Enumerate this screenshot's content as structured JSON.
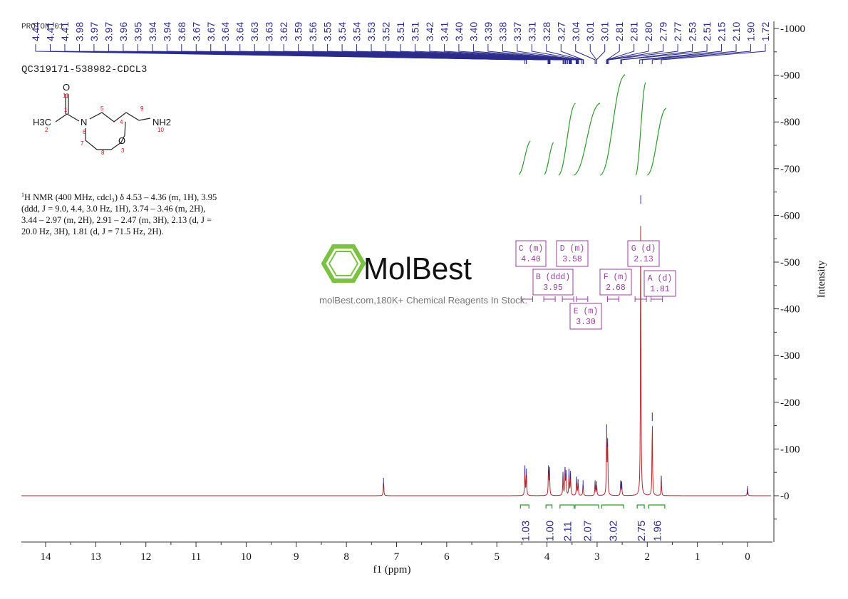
{
  "chart_data": {
    "type": "line",
    "title": "",
    "experiment_label": "PROTON_01",
    "sample_id": "QC319171-538982-CDCL3",
    "xlabel": "f1 (ppm)",
    "ylabel": "Intensity",
    "xlim": [
      14.5,
      -0.5
    ],
    "ylim": [
      -100,
      1000
    ],
    "x_ticks": [
      "14",
      "13",
      "12",
      "11",
      "10",
      "9",
      "8",
      "7",
      "6",
      "5",
      "4",
      "3",
      "2",
      "1",
      "0"
    ],
    "y_ticks": [
      "1000",
      "900",
      "800",
      "700",
      "600",
      "500",
      "400",
      "300",
      "200",
      "100",
      "0"
    ],
    "grid": false,
    "peak_labels": [
      "4.44",
      "4.41",
      "4.41",
      "3.98",
      "3.97",
      "3.97",
      "3.96",
      "3.95",
      "3.94",
      "3.94",
      "3.68",
      "3.67",
      "3.67",
      "3.64",
      "3.64",
      "3.63",
      "3.63",
      "3.62",
      "3.59",
      "3.56",
      "3.55",
      "3.54",
      "3.54",
      "3.53",
      "3.52",
      "3.51",
      "3.51",
      "3.42",
      "3.41",
      "3.40",
      "3.40",
      "3.39",
      "3.38",
      "3.37",
      "3.31",
      "3.28",
      "3.27",
      "3.04",
      "3.01",
      "3.01",
      "2.81",
      "2.81",
      "2.80",
      "2.79",
      "2.77",
      "2.53",
      "2.51",
      "2.15",
      "2.10",
      "1.90",
      "1.72"
    ],
    "spectrum_peaks": [
      {
        "ppm": 7.26,
        "height": 35
      },
      {
        "ppm": 4.44,
        "height": 62
      },
      {
        "ppm": 4.41,
        "height": 55
      },
      {
        "ppm": 3.97,
        "height": 62
      },
      {
        "ppm": 3.95,
        "height": 58
      },
      {
        "ppm": 3.68,
        "height": 48
      },
      {
        "ppm": 3.64,
        "height": 58
      },
      {
        "ppm": 3.62,
        "height": 52
      },
      {
        "ppm": 3.56,
        "height": 55
      },
      {
        "ppm": 3.53,
        "height": 50
      },
      {
        "ppm": 3.41,
        "height": 38
      },
      {
        "ppm": 3.38,
        "height": 32
      },
      {
        "ppm": 3.28,
        "height": 30
      },
      {
        "ppm": 3.04,
        "height": 30
      },
      {
        "ppm": 3.01,
        "height": 28
      },
      {
        "ppm": 2.81,
        "height": 150
      },
      {
        "ppm": 2.79,
        "height": 120
      },
      {
        "ppm": 2.53,
        "height": 30
      },
      {
        "ppm": 2.51,
        "height": 28
      },
      {
        "ppm": 2.13,
        "height": 640
      },
      {
        "ppm": 1.9,
        "height": 175
      },
      {
        "ppm": 1.72,
        "height": 40
      },
      {
        "ppm": 0.0,
        "height": 18
      }
    ],
    "multiplets": [
      {
        "id": "A",
        "mult": "(d)",
        "shift": "1.81"
      },
      {
        "id": "B",
        "mult": "(ddd)",
        "shift": "3.95"
      },
      {
        "id": "C",
        "mult": "(m)",
        "shift": "4.40"
      },
      {
        "id": "D",
        "mult": "(m)",
        "shift": "3.58"
      },
      {
        "id": "E",
        "mult": "(m)",
        "shift": "3.30"
      },
      {
        "id": "F",
        "mult": "(m)",
        "shift": "2.68"
      },
      {
        "id": "G",
        "mult": "(d)",
        "shift": "2.13"
      }
    ],
    "integrals": [
      {
        "label": "1.03",
        "from": 4.53,
        "to": 4.36
      },
      {
        "label": "1.00",
        "from": 4.02,
        "to": 3.9
      },
      {
        "label": "2.11",
        "from": 3.74,
        "to": 3.46
      },
      {
        "label": "2.07",
        "from": 3.44,
        "to": 2.97
      },
      {
        "label": "3.02",
        "from": 2.91,
        "to": 2.47
      },
      {
        "label": "2.75",
        "from": 2.2,
        "to": 2.06
      },
      {
        "label": "1.96",
        "from": 1.97,
        "to": 1.65
      }
    ]
  },
  "molecule": {
    "atoms": [
      "O",
      "11",
      "1",
      "H3C",
      "2",
      "N",
      "6",
      "5",
      "4",
      "9",
      "NH2",
      "10",
      "7",
      "8",
      "O",
      "3"
    ]
  },
  "nmr_text": {
    "line1": "H NMR (400 MHz, cdcl₃) δ 4.53 – 4.36 (m, 1H), 3.95",
    "line2": "(ddd, J = 9.0, 4.4, 3.0 Hz, 1H), 3.74 – 3.46 (m, 2H),",
    "line3": "3.44 – 2.97 (m, 2H), 2.91 – 2.47 (m, 3H), 2.13 (d, J =",
    "line4": "20.0 Hz, 3H), 1.81 (d, J = 71.5 Hz, 2H).",
    "sup": "1"
  },
  "watermark": {
    "brand": "MolBest",
    "tagline": "molBest.com,180K+ Chemical Reagents In Stock."
  },
  "colors": {
    "spectrum": "#b4282d",
    "peak_pick": "#2c2c8a",
    "integral": "#2f9a2f",
    "multiplet_box": "#9b3fa0",
    "logo": "#7cc242",
    "axis": "#333333"
  }
}
